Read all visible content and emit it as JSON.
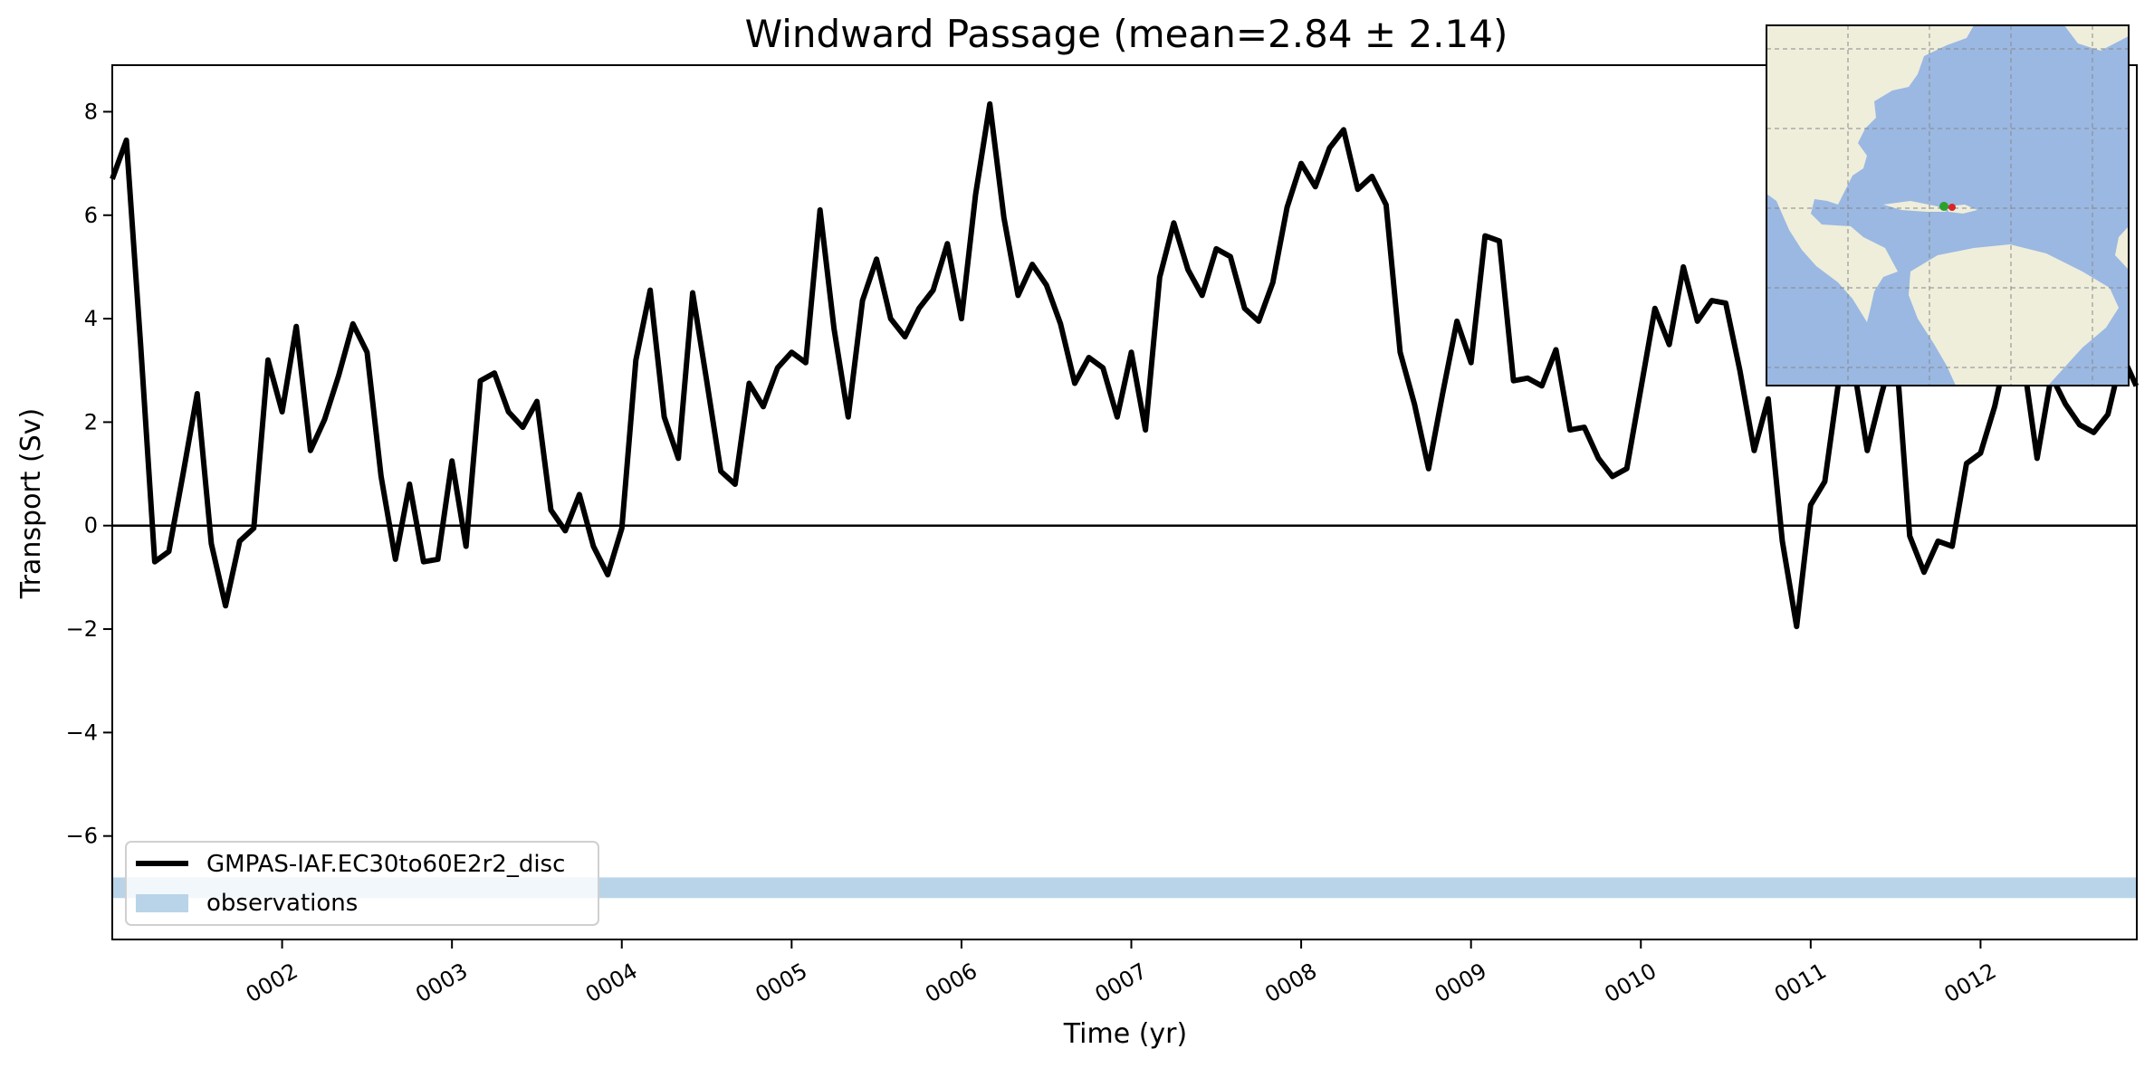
{
  "chart_data": {
    "type": "line",
    "title": "Windward Passage (mean=2.84 ± 2.14)",
    "xlabel": "Time (yr)",
    "ylabel": "Transport (Sv)",
    "xlim": [
      1.0,
      12.92
    ],
    "ylim": [
      -8.0,
      8.9
    ],
    "x_ticks": [
      2,
      3,
      4,
      5,
      6,
      7,
      8,
      9,
      10,
      11,
      12
    ],
    "x_tick_labels": [
      "0002",
      "0003",
      "0004",
      "0005",
      "0006",
      "0007",
      "0008",
      "0009",
      "0010",
      "0011",
      "0012"
    ],
    "y_ticks": [
      -6,
      -4,
      -2,
      0,
      2,
      4,
      6,
      8
    ],
    "y_tick_labels": [
      "−6",
      "−4",
      "−2",
      "0",
      "2",
      "4",
      "6",
      "8"
    ],
    "zero_line": 0,
    "grid": false,
    "legend_position": "lower-left",
    "series": [
      {
        "name": "GMPAS-IAF.EC30to60E2r2_disc",
        "color": "#000000",
        "x": [
          1.0,
          1.083,
          1.167,
          1.25,
          1.333,
          1.417,
          1.5,
          1.583,
          1.667,
          1.75,
          1.833,
          1.917,
          2.0,
          2.083,
          2.167,
          2.25,
          2.333,
          2.417,
          2.5,
          2.583,
          2.667,
          2.75,
          2.833,
          2.917,
          3.0,
          3.083,
          3.167,
          3.25,
          3.333,
          3.417,
          3.5,
          3.583,
          3.667,
          3.75,
          3.833,
          3.917,
          4.0,
          4.083,
          4.167,
          4.25,
          4.333,
          4.417,
          4.5,
          4.583,
          4.667,
          4.75,
          4.833,
          4.917,
          5.0,
          5.083,
          5.167,
          5.25,
          5.333,
          5.417,
          5.5,
          5.583,
          5.667,
          5.75,
          5.833,
          5.917,
          6.0,
          6.083,
          6.167,
          6.25,
          6.333,
          6.417,
          6.5,
          6.583,
          6.667,
          6.75,
          6.833,
          6.917,
          7.0,
          7.083,
          7.167,
          7.25,
          7.333,
          7.417,
          7.5,
          7.583,
          7.667,
          7.75,
          7.833,
          7.917,
          8.0,
          8.083,
          8.167,
          8.25,
          8.333,
          8.417,
          8.5,
          8.583,
          8.667,
          8.75,
          8.833,
          8.917,
          9.0,
          9.083,
          9.167,
          9.25,
          9.333,
          9.417,
          9.5,
          9.583,
          9.667,
          9.75,
          9.833,
          9.917,
          10.0,
          10.083,
          10.167,
          10.25,
          10.333,
          10.417,
          10.5,
          10.583,
          10.667,
          10.75,
          10.833,
          10.917,
          11.0,
          11.083,
          11.167,
          11.25,
          11.333,
          11.417,
          11.5,
          11.583,
          11.667,
          11.75,
          11.833,
          11.917,
          12.0,
          12.083,
          12.167,
          12.25,
          12.333,
          12.417,
          12.5,
          12.583,
          12.667,
          12.75,
          12.833,
          12.917
        ],
        "values": [
          6.7,
          7.45,
          3.5,
          -0.7,
          -0.5,
          1.0,
          2.55,
          -0.35,
          -1.55,
          -0.3,
          -0.05,
          3.2,
          2.2,
          3.85,
          1.45,
          2.05,
          2.9,
          3.9,
          3.35,
          0.95,
          -0.65,
          0.8,
          -0.7,
          -0.65,
          1.25,
          -0.4,
          2.8,
          2.95,
          2.2,
          1.9,
          2.4,
          0.3,
          -0.1,
          0.6,
          -0.4,
          -0.95,
          -0.05,
          3.2,
          4.55,
          2.1,
          1.3,
          4.5,
          2.8,
          1.05,
          0.8,
          2.75,
          2.3,
          3.05,
          3.35,
          3.15,
          6.1,
          3.8,
          2.1,
          4.35,
          5.15,
          4.0,
          3.65,
          4.2,
          4.55,
          5.45,
          4.0,
          6.4,
          8.15,
          5.95,
          4.45,
          5.05,
          4.65,
          3.9,
          2.75,
          3.25,
          3.05,
          2.1,
          3.35,
          1.85,
          4.8,
          5.85,
          4.95,
          4.45,
          5.35,
          5.2,
          4.2,
          3.95,
          4.7,
          6.15,
          7.0,
          6.55,
          7.3,
          7.65,
          6.5,
          6.75,
          6.2,
          3.35,
          2.35,
          1.1,
          2.55,
          3.95,
          3.15,
          5.6,
          5.5,
          2.8,
          2.85,
          2.7,
          3.4,
          1.85,
          1.9,
          1.3,
          0.95,
          1.1,
          2.65,
          4.2,
          3.5,
          5.0,
          3.95,
          4.35,
          4.3,
          3.0,
          1.45,
          2.45,
          -0.3,
          -1.95,
          0.4,
          0.85,
          2.85,
          3.15,
          1.45,
          2.55,
          3.5,
          -0.2,
          -0.9,
          -0.3,
          -0.4,
          1.2,
          1.4,
          2.3,
          3.55,
          3.25,
          1.3,
          2.9,
          2.35,
          1.95,
          1.8,
          2.15,
          3.3,
          2.7
        ]
      }
    ],
    "observations_band": {
      "name": "observations",
      "range": [
        -7.2,
        -6.8
      ],
      "color": "#b9d4e8"
    },
    "inset_map": {
      "ocean_color": "#9ab8e2",
      "land_color": "#efeedb",
      "marker_colors": [
        "#d62728",
        "#2ca02c"
      ]
    }
  }
}
